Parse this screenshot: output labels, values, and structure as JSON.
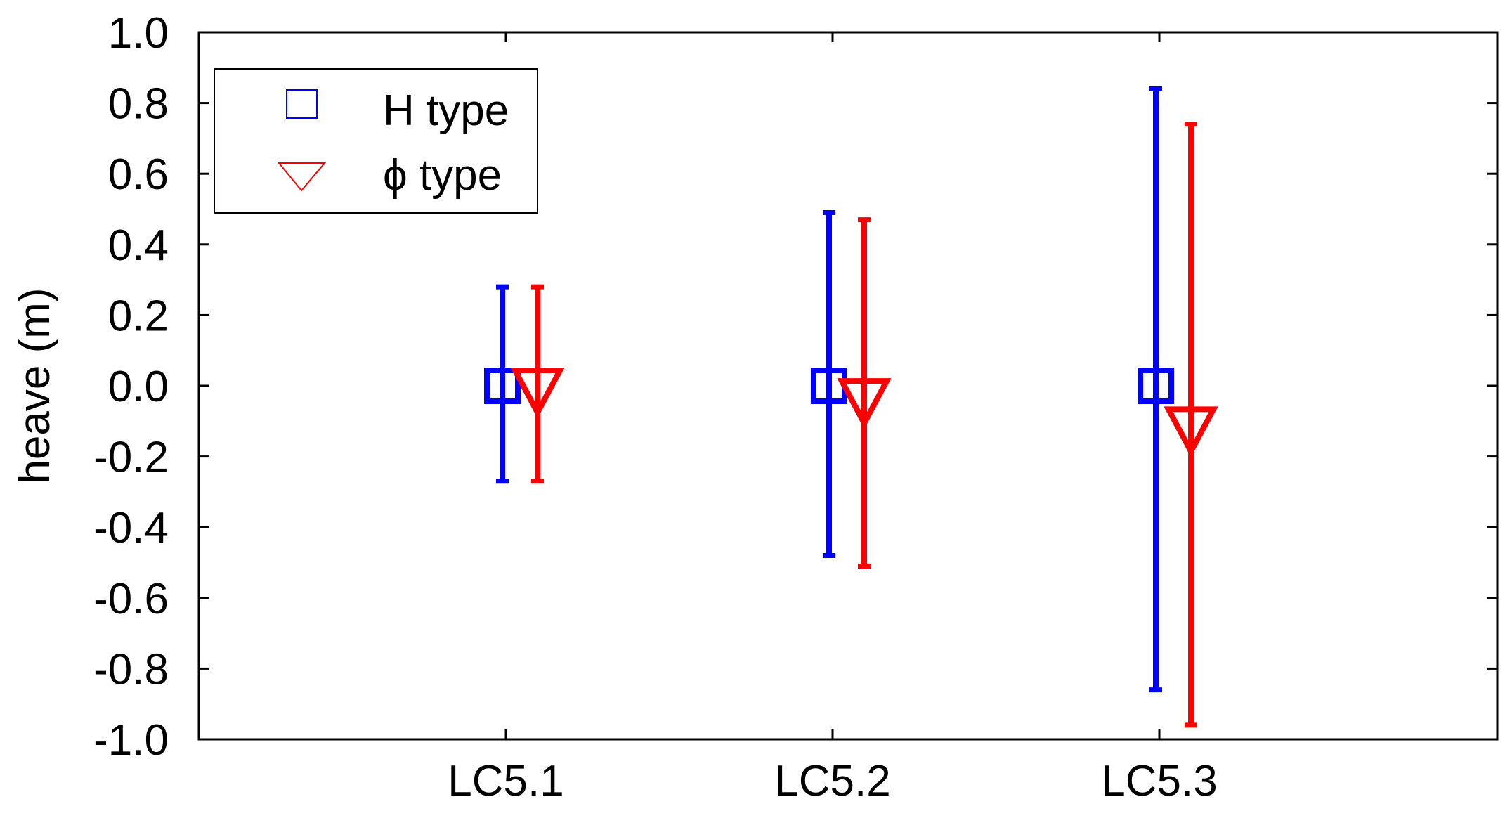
{
  "chart_data": {
    "type": "errorbar",
    "ylabel": "heave (m)",
    "xlabel": "",
    "categories": [
      "LC5.1",
      "LC5.2",
      "LC5.3"
    ],
    "ylim": [
      -1.0,
      1.0
    ],
    "yticks": [
      "1.0",
      "0.8",
      "0.6",
      "0.4",
      "0.2",
      "0.0",
      "-0.2",
      "-0.4",
      "-0.6",
      "-0.8",
      "-1.0"
    ],
    "grid": false,
    "legend_position": "top-left",
    "series": [
      {
        "name": "H type",
        "marker": "square",
        "color": "#0000ff",
        "mean": [
          0.0,
          0.0,
          0.0
        ],
        "min": [
          -0.27,
          -0.48,
          -0.86
        ],
        "max": [
          0.28,
          0.49,
          0.84
        ]
      },
      {
        "name": "ϕ type",
        "marker": "triangle-down",
        "color": "#ff0000",
        "mean": [
          0.0,
          -0.03,
          -0.11
        ],
        "min": [
          -0.27,
          -0.51,
          -0.96
        ],
        "max": [
          0.28,
          0.47,
          0.74
        ]
      }
    ]
  }
}
